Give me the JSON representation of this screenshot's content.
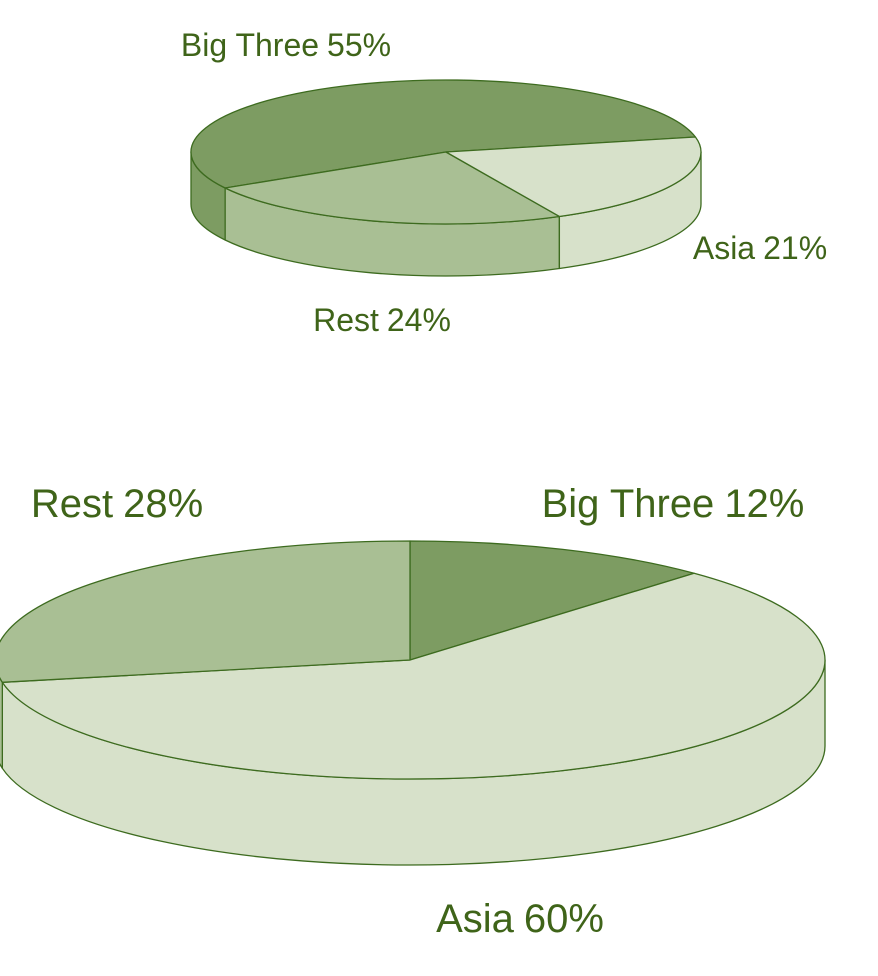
{
  "chart_data": [
    {
      "type": "pie3d",
      "categories": [
        "Big Three",
        "Rest",
        "Asia"
      ],
      "values": [
        55,
        24,
        21
      ],
      "value_labels": [
        "55%",
        "24%",
        "21%"
      ],
      "colors": [
        "#7d9c62",
        "#a9bf94",
        "#d7e1ca"
      ]
    },
    {
      "type": "pie3d",
      "categories": [
        "Big Three",
        "Asia",
        "Rest"
      ],
      "values": [
        12,
        60,
        28
      ],
      "value_labels": [
        "12%",
        "60%",
        "28%"
      ],
      "colors": [
        "#7d9c62",
        "#d7e1ca",
        "#a9bf94"
      ]
    }
  ]
}
